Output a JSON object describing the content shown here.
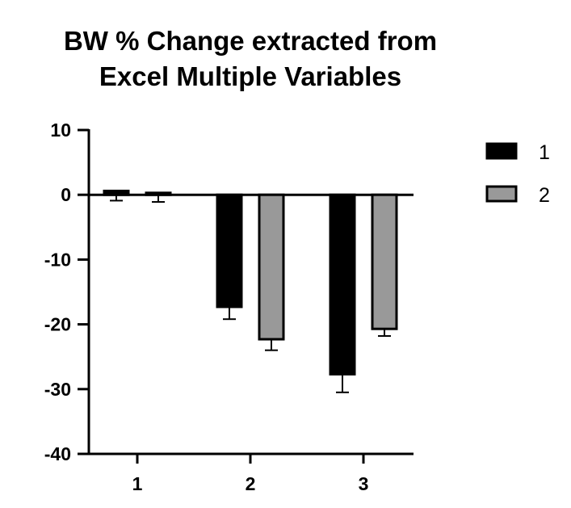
{
  "chart_data": {
    "type": "bar",
    "title": "BW % Change extracted from Excel Multiple Variables",
    "title_lines": [
      "BW % Change extracted from",
      "Excel Multiple Variables"
    ],
    "xlabel": "",
    "ylabel": "",
    "categories": [
      "1",
      "2",
      "3"
    ],
    "ylim": [
      -40,
      10
    ],
    "yticks": [
      10,
      0,
      -10,
      -20,
      -30,
      -40
    ],
    "grid": false,
    "legend": "right",
    "series": [
      {
        "name": "1",
        "color": "#000000",
        "values": [
          0.6,
          -17.3,
          -27.7
        ],
        "errors": [
          1.5,
          1.9,
          2.8
        ]
      },
      {
        "name": "2",
        "color": "#999999",
        "values": [
          0.3,
          -22.3,
          -20.7
        ],
        "errors": [
          1.4,
          1.7,
          1.1
        ]
      }
    ]
  }
}
